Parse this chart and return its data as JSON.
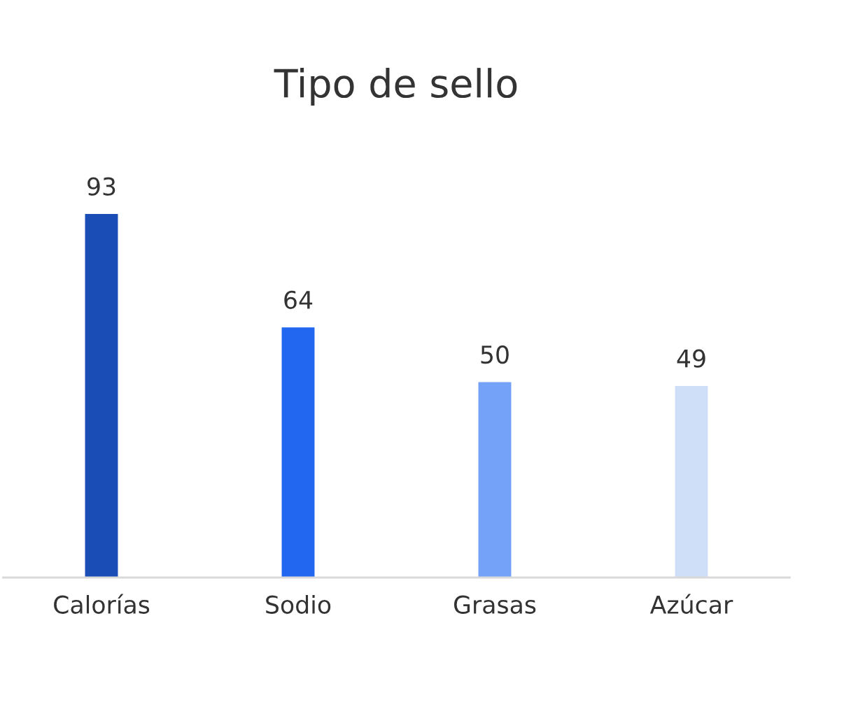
{
  "chart_data": {
    "type": "bar",
    "title": "Tipo de sello",
    "categories": [
      "Calorías",
      "Sodio",
      "Grasas",
      "Azúcar"
    ],
    "values": [
      93,
      64,
      50,
      49
    ],
    "colors": [
      "#1a4db5",
      "#2167f0",
      "#73a2f8",
      "#d0dff8"
    ],
    "data_labels": true,
    "grid": false,
    "legend": false,
    "tick_labels": "x"
  }
}
